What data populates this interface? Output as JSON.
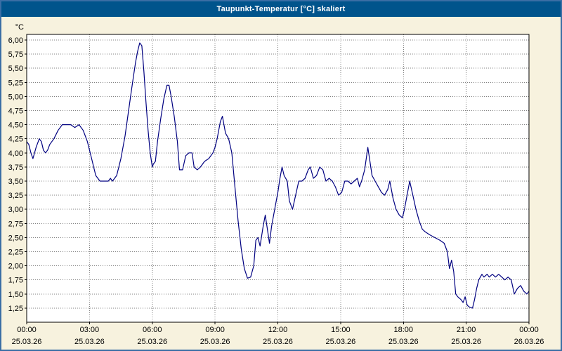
{
  "window": {
    "title": "Taupunkt-Temperatur [°C] skaliert"
  },
  "colors": {
    "titlebar_bg": "#00548c",
    "titlebar_text": "#ffffff",
    "window_border": "#3a6ea5",
    "background": "#f7f2de",
    "plot_bg": "#ffffff",
    "grid": "#808080",
    "axis": "#000000",
    "line": "#000080"
  },
  "chart_data": {
    "type": "line",
    "title": "Taupunkt-Temperatur [°C] skaliert",
    "ylabel": "°C",
    "xlabel": "",
    "ylim": [
      1.0,
      6.1
    ],
    "xlim": [
      0,
      24
    ],
    "grid": "dashed",
    "legend": "none",
    "yticks": [
      {
        "v": 6.0,
        "label": "6,00"
      },
      {
        "v": 5.75,
        "label": "5,75"
      },
      {
        "v": 5.5,
        "label": "5,50"
      },
      {
        "v": 5.25,
        "label": "5,25"
      },
      {
        "v": 5.0,
        "label": "5,00"
      },
      {
        "v": 4.75,
        "label": "4,75"
      },
      {
        "v": 4.5,
        "label": "4,50"
      },
      {
        "v": 4.25,
        "label": "4,25"
      },
      {
        "v": 4.0,
        "label": "4,00"
      },
      {
        "v": 3.75,
        "label": "3,75"
      },
      {
        "v": 3.5,
        "label": "3,50"
      },
      {
        "v": 3.25,
        "label": "3,25"
      },
      {
        "v": 3.0,
        "label": "3,00"
      },
      {
        "v": 2.75,
        "label": "2,75"
      },
      {
        "v": 2.5,
        "label": "2,50"
      },
      {
        "v": 2.25,
        "label": "2,25"
      },
      {
        "v": 2.0,
        "label": "2,00"
      },
      {
        "v": 1.75,
        "label": "1,75"
      },
      {
        "v": 1.5,
        "label": "1,50"
      },
      {
        "v": 1.25,
        "label": "1,25"
      }
    ],
    "xticks": [
      {
        "h": 0,
        "time": "00:00",
        "date": "25.03.26"
      },
      {
        "h": 3,
        "time": "03:00",
        "date": "25.03.26"
      },
      {
        "h": 6,
        "time": "06:00",
        "date": "25.03.26"
      },
      {
        "h": 9,
        "time": "09:00",
        "date": "25.03.26"
      },
      {
        "h": 12,
        "time": "12:00",
        "date": "25.03.26"
      },
      {
        "h": 15,
        "time": "15:00",
        "date": "25.03.26"
      },
      {
        "h": 18,
        "time": "18:00",
        "date": "25.03.26"
      },
      {
        "h": 21,
        "time": "21:00",
        "date": "25.03.26"
      },
      {
        "h": 24,
        "time": "00:00",
        "date": "26.03.26"
      }
    ],
    "series": [
      {
        "name": "Taupunkt-Temperatur",
        "points": [
          [
            0.0,
            4.2
          ],
          [
            0.1,
            4.15
          ],
          [
            0.2,
            4.0
          ],
          [
            0.3,
            3.9
          ],
          [
            0.45,
            4.1
          ],
          [
            0.6,
            4.25
          ],
          [
            0.7,
            4.2
          ],
          [
            0.8,
            4.05
          ],
          [
            0.9,
            4.0
          ],
          [
            1.0,
            4.05
          ],
          [
            1.1,
            4.15
          ],
          [
            1.3,
            4.25
          ],
          [
            1.5,
            4.4
          ],
          [
            1.7,
            4.5
          ],
          [
            1.9,
            4.5
          ],
          [
            2.1,
            4.5
          ],
          [
            2.3,
            4.45
          ],
          [
            2.5,
            4.5
          ],
          [
            2.7,
            4.4
          ],
          [
            2.9,
            4.2
          ],
          [
            3.1,
            3.9
          ],
          [
            3.3,
            3.6
          ],
          [
            3.5,
            3.5
          ],
          [
            3.7,
            3.5
          ],
          [
            3.9,
            3.5
          ],
          [
            4.0,
            3.55
          ],
          [
            4.1,
            3.5
          ],
          [
            4.3,
            3.6
          ],
          [
            4.5,
            3.9
          ],
          [
            4.7,
            4.3
          ],
          [
            4.85,
            4.7
          ],
          [
            5.0,
            5.1
          ],
          [
            5.1,
            5.35
          ],
          [
            5.2,
            5.6
          ],
          [
            5.3,
            5.8
          ],
          [
            5.4,
            5.95
          ],
          [
            5.5,
            5.9
          ],
          [
            5.6,
            5.45
          ],
          [
            5.7,
            4.9
          ],
          [
            5.8,
            4.4
          ],
          [
            5.9,
            4.0
          ],
          [
            6.0,
            3.75
          ],
          [
            6.05,
            3.8
          ],
          [
            6.15,
            3.85
          ],
          [
            6.25,
            4.2
          ],
          [
            6.4,
            4.6
          ],
          [
            6.55,
            4.95
          ],
          [
            6.7,
            5.2
          ],
          [
            6.8,
            5.2
          ],
          [
            6.9,
            5.0
          ],
          [
            7.05,
            4.65
          ],
          [
            7.2,
            4.2
          ],
          [
            7.3,
            3.7
          ],
          [
            7.45,
            3.7
          ],
          [
            7.6,
            3.95
          ],
          [
            7.75,
            4.0
          ],
          [
            7.9,
            4.0
          ],
          [
            8.0,
            3.75
          ],
          [
            8.15,
            3.7
          ],
          [
            8.3,
            3.75
          ],
          [
            8.5,
            3.85
          ],
          [
            8.7,
            3.9
          ],
          [
            8.9,
            4.0
          ],
          [
            9.0,
            4.1
          ],
          [
            9.1,
            4.25
          ],
          [
            9.25,
            4.55
          ],
          [
            9.35,
            4.65
          ],
          [
            9.5,
            4.35
          ],
          [
            9.65,
            4.25
          ],
          [
            9.8,
            4.0
          ],
          [
            9.95,
            3.4
          ],
          [
            10.1,
            2.8
          ],
          [
            10.25,
            2.3
          ],
          [
            10.4,
            1.95
          ],
          [
            10.55,
            1.78
          ],
          [
            10.7,
            1.8
          ],
          [
            10.85,
            2.0
          ],
          [
            10.95,
            2.45
          ],
          [
            11.05,
            2.5
          ],
          [
            11.15,
            2.35
          ],
          [
            11.3,
            2.7
          ],
          [
            11.4,
            2.9
          ],
          [
            11.5,
            2.65
          ],
          [
            11.6,
            2.4
          ],
          [
            11.7,
            2.7
          ],
          [
            11.85,
            3.0
          ],
          [
            12.0,
            3.3
          ],
          [
            12.1,
            3.55
          ],
          [
            12.2,
            3.75
          ],
          [
            12.3,
            3.6
          ],
          [
            12.45,
            3.5
          ],
          [
            12.55,
            3.15
          ],
          [
            12.7,
            3.0
          ],
          [
            12.85,
            3.25
          ],
          [
            13.0,
            3.5
          ],
          [
            13.15,
            3.5
          ],
          [
            13.3,
            3.55
          ],
          [
            13.45,
            3.7
          ],
          [
            13.55,
            3.75
          ],
          [
            13.7,
            3.55
          ],
          [
            13.85,
            3.6
          ],
          [
            14.0,
            3.75
          ],
          [
            14.15,
            3.7
          ],
          [
            14.3,
            3.5
          ],
          [
            14.45,
            3.55
          ],
          [
            14.6,
            3.5
          ],
          [
            14.75,
            3.4
          ],
          [
            14.9,
            3.25
          ],
          [
            15.05,
            3.3
          ],
          [
            15.2,
            3.5
          ],
          [
            15.35,
            3.5
          ],
          [
            15.5,
            3.45
          ],
          [
            15.65,
            3.5
          ],
          [
            15.8,
            3.55
          ],
          [
            15.9,
            3.4
          ],
          [
            16.0,
            3.5
          ],
          [
            16.15,
            3.7
          ],
          [
            16.3,
            4.1
          ],
          [
            16.4,
            3.85
          ],
          [
            16.5,
            3.6
          ],
          [
            16.65,
            3.5
          ],
          [
            16.8,
            3.4
          ],
          [
            16.95,
            3.3
          ],
          [
            17.1,
            3.25
          ],
          [
            17.25,
            3.35
          ],
          [
            17.35,
            3.5
          ],
          [
            17.5,
            3.2
          ],
          [
            17.65,
            3.0
          ],
          [
            17.8,
            2.9
          ],
          [
            17.95,
            2.85
          ],
          [
            18.05,
            3.0
          ],
          [
            18.2,
            3.3
          ],
          [
            18.3,
            3.5
          ],
          [
            18.45,
            3.25
          ],
          [
            18.6,
            3.0
          ],
          [
            18.75,
            2.8
          ],
          [
            18.9,
            2.65
          ],
          [
            19.05,
            2.6
          ],
          [
            19.25,
            2.55
          ],
          [
            19.5,
            2.5
          ],
          [
            19.75,
            2.45
          ],
          [
            19.95,
            2.4
          ],
          [
            20.1,
            2.25
          ],
          [
            20.2,
            1.95
          ],
          [
            20.3,
            2.1
          ],
          [
            20.4,
            1.9
          ],
          [
            20.5,
            1.5
          ],
          [
            20.6,
            1.45
          ],
          [
            20.75,
            1.4
          ],
          [
            20.85,
            1.35
          ],
          [
            20.95,
            1.45
          ],
          [
            21.05,
            1.3
          ],
          [
            21.15,
            1.27
          ],
          [
            21.3,
            1.25
          ],
          [
            21.4,
            1.4
          ],
          [
            21.5,
            1.6
          ],
          [
            21.6,
            1.75
          ],
          [
            21.75,
            1.85
          ],
          [
            21.85,
            1.8
          ],
          [
            22.0,
            1.85
          ],
          [
            22.1,
            1.8
          ],
          [
            22.25,
            1.85
          ],
          [
            22.4,
            1.8
          ],
          [
            22.55,
            1.85
          ],
          [
            22.7,
            1.8
          ],
          [
            22.85,
            1.75
          ],
          [
            23.0,
            1.8
          ],
          [
            23.15,
            1.75
          ],
          [
            23.3,
            1.5
          ],
          [
            23.45,
            1.6
          ],
          [
            23.6,
            1.65
          ],
          [
            23.75,
            1.55
          ],
          [
            23.9,
            1.5
          ],
          [
            24.0,
            1.55
          ]
        ]
      }
    ]
  }
}
